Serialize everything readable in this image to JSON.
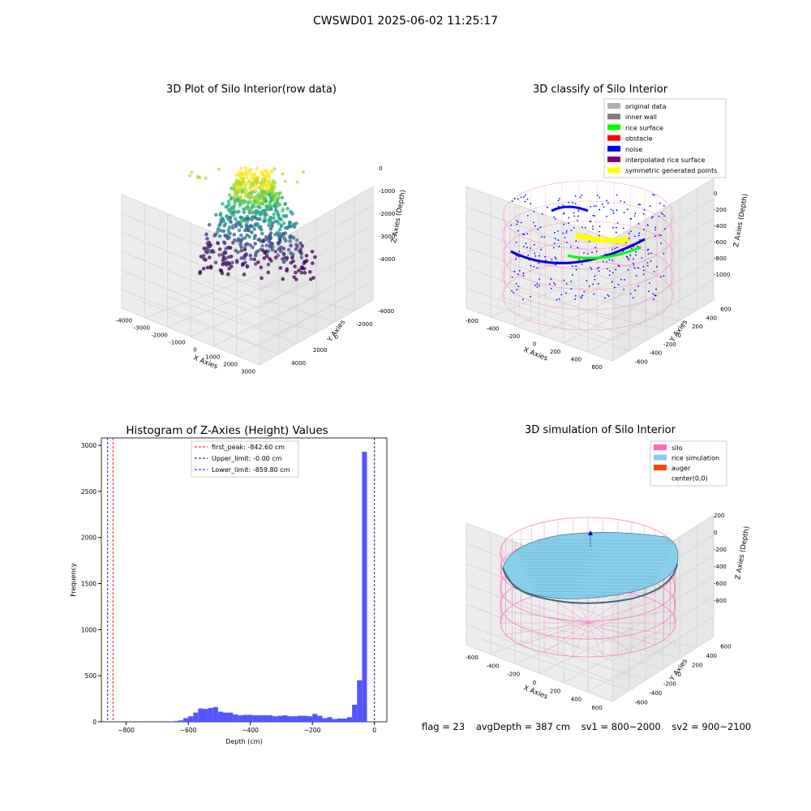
{
  "suptitle": "CWSWD01 2025-06-02 11:25:17",
  "chart_data": [
    {
      "type": "scatter",
      "title": "3D Plot of Silo Interior(row data)",
      "xlabel": "X Axies",
      "ylabel": "Y Axies",
      "zlabel": "Z Axies (Depth)",
      "x_ticks": [
        "-4000",
        "-3000",
        "-2000",
        "-1000",
        "0",
        "1000",
        "2000",
        "3000"
      ],
      "y_ticks": [
        "-4000",
        "-2000",
        "0",
        "2000",
        "4000"
      ],
      "z_ticks": [
        "0",
        "-1000",
        "-2000",
        "-3000",
        "-4000"
      ],
      "xlim": [
        -4500,
        3500
      ],
      "ylim": [
        -4500,
        4500
      ],
      "zlim": [
        -4500,
        0
      ],
      "colormap": "viridis"
    },
    {
      "type": "scatter",
      "title": "3D classify of Silo Interior",
      "xlabel": "X Axies",
      "ylabel": "Y Axies",
      "zlabel": "Z Axies (Depth)",
      "x_ticks": [
        "-600",
        "-400",
        "-200",
        "0",
        "200",
        "400",
        "600"
      ],
      "y_ticks": [
        "-600",
        "-400",
        "-200",
        "0",
        "200",
        "400",
        "600"
      ],
      "z_ticks": [
        "0",
        "-200",
        "-400",
        "-600",
        "-800",
        "-1000"
      ],
      "legend_position": "top-right",
      "legend": [
        {
          "label": "original data",
          "color": "#b0b0b0"
        },
        {
          "label": "inner wall",
          "color": "#808080"
        },
        {
          "label": "rice surface",
          "color": "#00ff00"
        },
        {
          "label": "obstacle",
          "color": "#ff0000"
        },
        {
          "label": "noise",
          "color": "#0000ff"
        },
        {
          "label": "interpolated rice surface",
          "color": "#800080"
        },
        {
          "label": "symmetric generated points",
          "color": "#ffff00"
        }
      ],
      "wall_color": "#ff69b4"
    },
    {
      "type": "bar",
      "title": "Histogram of Z-Axies (Height) Values",
      "xlabel": "Depth (cm)",
      "ylabel": "Frequency",
      "xlim": [
        -880,
        40
      ],
      "ylim": [
        0,
        3080
      ],
      "x_ticks": [
        -800,
        -600,
        -400,
        -200,
        0
      ],
      "y_ticks": [
        0,
        500,
        1000,
        1500,
        2000,
        2500,
        3000
      ],
      "bin_width": 16,
      "bar_color": "#4c4cff",
      "bins": [
        {
          "x": -752,
          "count": 5
        },
        {
          "x": -656,
          "count": 5
        },
        {
          "x": -640,
          "count": 8
        },
        {
          "x": -624,
          "count": 15
        },
        {
          "x": -608,
          "count": 40
        },
        {
          "x": -592,
          "count": 60
        },
        {
          "x": -576,
          "count": 100
        },
        {
          "x": -560,
          "count": 145
        },
        {
          "x": -544,
          "count": 140
        },
        {
          "x": -528,
          "count": 150
        },
        {
          "x": -512,
          "count": 160
        },
        {
          "x": -496,
          "count": 110
        },
        {
          "x": -480,
          "count": 100
        },
        {
          "x": -464,
          "count": 100
        },
        {
          "x": -448,
          "count": 80
        },
        {
          "x": -432,
          "count": 70
        },
        {
          "x": -416,
          "count": 75
        },
        {
          "x": -400,
          "count": 75
        },
        {
          "x": -384,
          "count": 70
        },
        {
          "x": -368,
          "count": 70
        },
        {
          "x": -352,
          "count": 70
        },
        {
          "x": -336,
          "count": 70
        },
        {
          "x": -320,
          "count": 60
        },
        {
          "x": -304,
          "count": 65
        },
        {
          "x": -288,
          "count": 70
        },
        {
          "x": -272,
          "count": 60
        },
        {
          "x": -256,
          "count": 60
        },
        {
          "x": -240,
          "count": 65
        },
        {
          "x": -224,
          "count": 65
        },
        {
          "x": -208,
          "count": 60
        },
        {
          "x": -192,
          "count": 85
        },
        {
          "x": -176,
          "count": 65
        },
        {
          "x": -160,
          "count": 40
        },
        {
          "x": -144,
          "count": 50
        },
        {
          "x": -128,
          "count": 30
        },
        {
          "x": -112,
          "count": 35
        },
        {
          "x": -96,
          "count": 35
        },
        {
          "x": -80,
          "count": 50
        },
        {
          "x": -64,
          "count": 185
        },
        {
          "x": -48,
          "count": 450
        },
        {
          "x": -32,
          "count": 2930
        },
        {
          "x": -16,
          "count": 5
        }
      ],
      "vlines": [
        {
          "label": "first_peak: -842.60 cm",
          "x": -842.6,
          "color": "#ff0000"
        },
        {
          "label": "Upper_limit: -0.00 cm",
          "x": 0,
          "color": "#000080"
        },
        {
          "label": "Lower_limit: -859.80 cm",
          "x": -859.8,
          "color": "#0000ff"
        }
      ],
      "legend_position": "top-center"
    },
    {
      "type": "surface",
      "title": "3D simulation of Silo Interior",
      "xlabel": "X Axies",
      "ylabel": "Y Axies",
      "zlabel": "Z Axies (Depth)",
      "x_ticks": [
        "-600",
        "-400",
        "-200",
        "0",
        "200",
        "400",
        "600"
      ],
      "y_ticks": [
        "-600",
        "-400",
        "-200",
        "0",
        "200",
        "400",
        "600"
      ],
      "z_ticks": [
        "200",
        "0",
        "-200",
        "-400",
        "-600",
        "-800"
      ],
      "legend_position": "top-right",
      "legend": [
        {
          "label": "silo",
          "color": "#ff69b4"
        },
        {
          "label": "rice simulation",
          "color": "#87ceeb"
        },
        {
          "label": "auger",
          "color": "#ff4500"
        },
        {
          "label": "center(0,0)",
          "color": "#ffffff"
        }
      ]
    }
  ],
  "footer": {
    "flag": "flag = 23",
    "avg": "avgDepth = 387 cm",
    "sv1": "sv1 = 800~2000",
    "sv2": "sv2 = 900~2100"
  }
}
